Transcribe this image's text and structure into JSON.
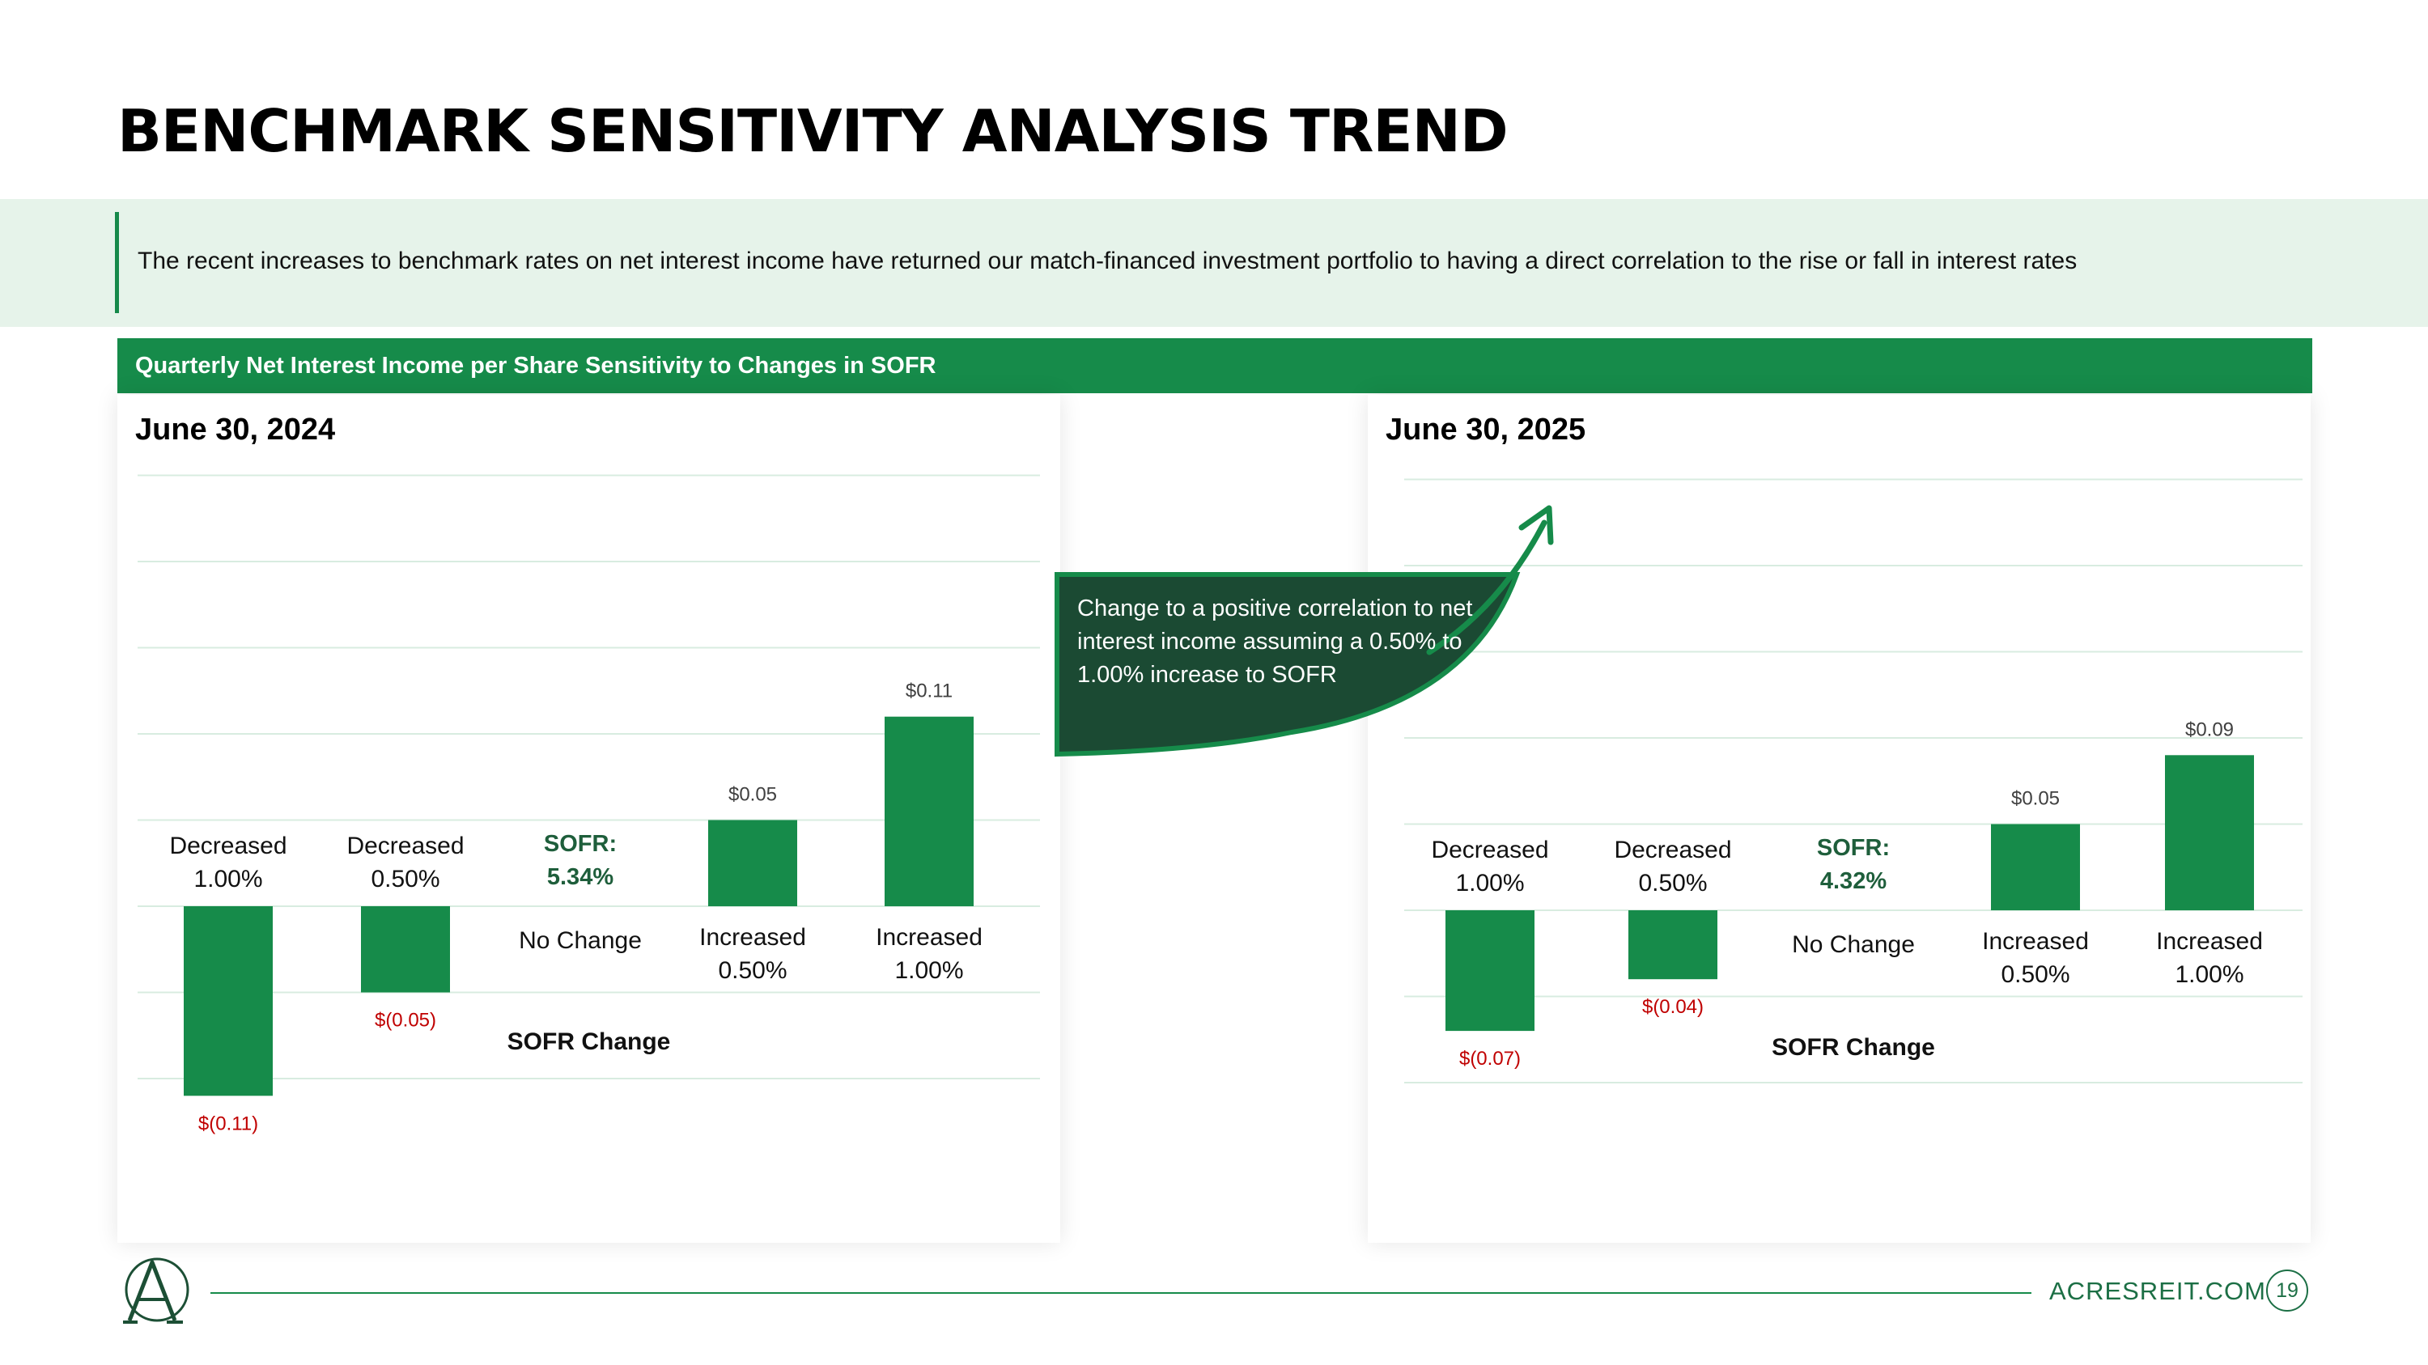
{
  "page": {
    "title": "BENCHMARK SENSITIVITY ANALYSIS TREND",
    "banner_text": "The recent increases to benchmark rates on net interest income have returned our match-financed investment portfolio to having a direct correlation to the rise or fall in interest rates",
    "section_title": "Quarterly Net Interest Income per Share Sensitivity to Changes in SOFR",
    "callout_text": "Change to a positive correlation to net interest income assuming a 0.50% to 1.00% increase to SOFR",
    "footer": {
      "website": "ACRESREIT.COM",
      "page_number": "19"
    },
    "logo_icon": "acres-a-logo-icon"
  },
  "colors": {
    "bar": "#168b4a",
    "negative_label": "#c00000",
    "positive_label": "#404040",
    "sofr_label": "#1e5e3b",
    "gridline": "#d8ece0"
  },
  "chart_data": [
    {
      "type": "bar",
      "title": "June 30, 2024",
      "xlabel": "SOFR Change",
      "ylabel": "",
      "ylim": [
        -0.15,
        0.25
      ],
      "grid": true,
      "categories": [
        [
          "Decreased",
          "1.00%"
        ],
        [
          "Decreased",
          "0.50%"
        ],
        [
          "No Change"
        ],
        [
          "Increased",
          "0.50%"
        ],
        [
          "Increased",
          "1.00%"
        ]
      ],
      "values": [
        -0.11,
        -0.05,
        0,
        0.05,
        0.11
      ],
      "value_labels": [
        "$(0.11)",
        "$(0.05)",
        "",
        "$0.05",
        "$0.11"
      ],
      "sofr_label": [
        "SOFR:",
        "5.34%"
      ]
    },
    {
      "type": "bar",
      "title": "June 30, 2025",
      "xlabel": "SOFR Change",
      "ylabel": "",
      "ylim": [
        -0.15,
        0.25
      ],
      "grid": true,
      "categories": [
        [
          "Decreased",
          "1.00%"
        ],
        [
          "Decreased",
          "0.50%"
        ],
        [
          "No Change"
        ],
        [
          "Increased",
          "0.50%"
        ],
        [
          "Increased",
          "1.00%"
        ]
      ],
      "values": [
        -0.07,
        -0.04,
        0,
        0.05,
        0.09
      ],
      "value_labels": [
        "$(0.07)",
        "$(0.04)",
        "",
        "$0.05",
        "$0.09"
      ],
      "sofr_label": [
        "SOFR:",
        "4.32%"
      ]
    }
  ]
}
